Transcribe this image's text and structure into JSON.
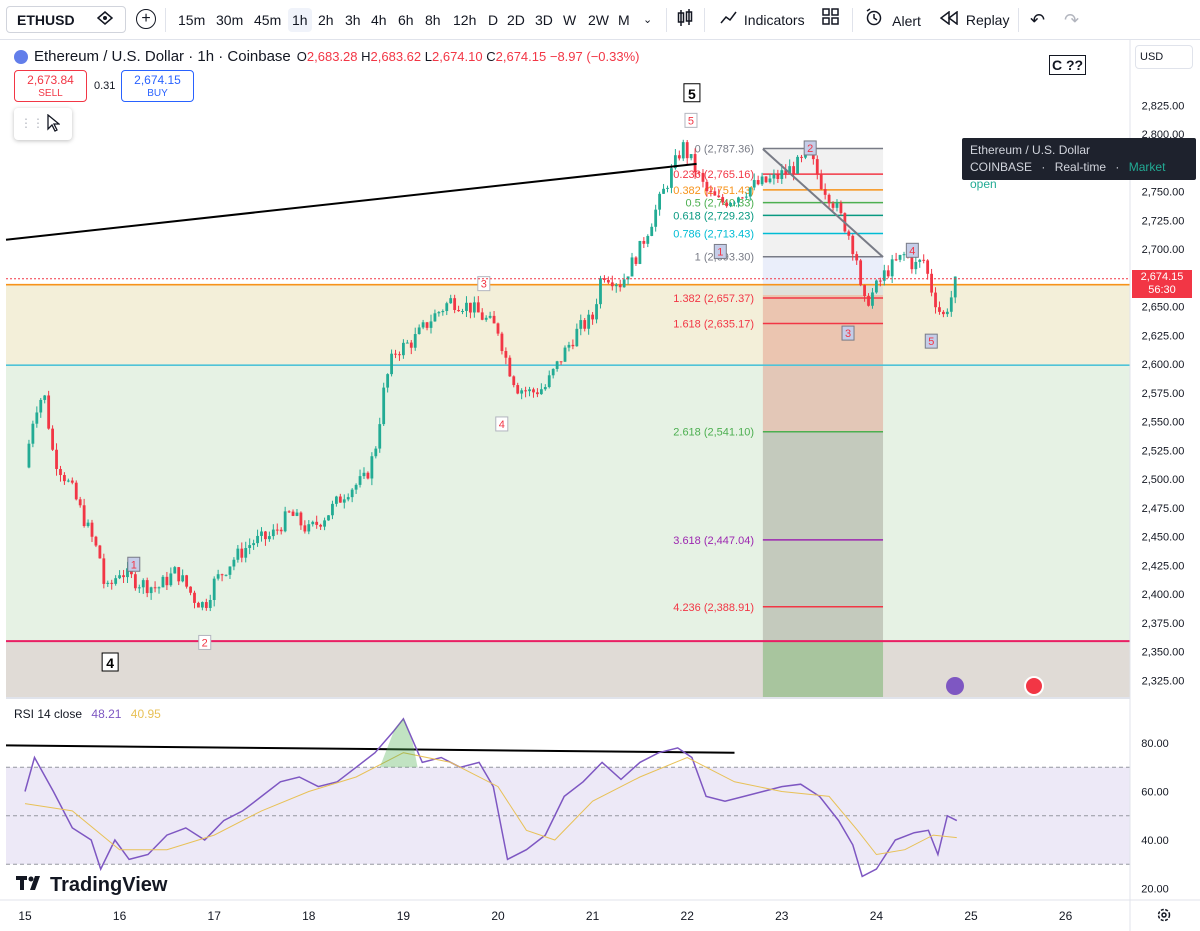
{
  "toolbar": {
    "symbol": "ETHUSD",
    "timeframes": [
      "15m",
      "30m",
      "45m",
      "1h",
      "2h",
      "3h",
      "4h",
      "6h",
      "8h",
      "12h",
      "D",
      "2D",
      "3D",
      "W",
      "2W",
      "M"
    ],
    "active_timeframe": "1h",
    "indicators_label": "Indicators",
    "alert_label": "Alert",
    "replay_label": "Replay"
  },
  "legend": {
    "title": "Ethereum / U.S. Dollar · 1h · Coinbase",
    "o_label": "O",
    "o_value": "2,683.28",
    "h_label": "H",
    "h_value": "2,683.62",
    "l_label": "L",
    "l_value": "2,674.10",
    "c_label": "C",
    "c_value": "2,674.15",
    "change": "−8.97 (−0.33%)"
  },
  "trade": {
    "sell_price": "2,673.84",
    "sell_label": "SELL",
    "spread": "0.31",
    "buy_price": "2,674.15",
    "buy_label": "BUY"
  },
  "tooltip": {
    "title": "Ethereum / U.S. Dollar",
    "exchange": "COINBASE",
    "sep": "·",
    "realtime": "Real-time",
    "status": "Market open"
  },
  "c_label": "C ??",
  "currency": "USD",
  "current_price": {
    "price": "2,674.15",
    "countdown": "56:30"
  },
  "rsi": {
    "label": "RSI 14 close",
    "value": "48.21",
    "ma_value": "40.95"
  },
  "brand": "TradingView",
  "colors": {
    "up": "#22ab94",
    "down": "#f23645",
    "rsi": "#7e57c2",
    "rsi_ma": "#e8c157"
  },
  "chart_data": [
    {
      "type": "candlestick",
      "title": "Ethereum / U.S. Dollar · 1h · Coinbase",
      "x_ticks": [
        "15",
        "16",
        "17",
        "18",
        "19",
        "20",
        "21",
        "22",
        "23",
        "24",
        "25",
        "26"
      ],
      "y_ticks": [
        "2,825.00",
        "2,800.00",
        "2,775.00",
        "2,750.00",
        "2,725.00",
        "2,700.00",
        "2,675.00",
        "2,650.00",
        "2,625.00",
        "2,600.00",
        "2,575.00",
        "2,550.00",
        "2,525.00",
        "2,500.00",
        "2,475.00",
        "2,450.00",
        "2,425.00",
        "2,400.00",
        "2,375.00",
        "2,350.00",
        "2,325.00"
      ],
      "ylim": [
        2313,
        2844
      ],
      "price_path": [
        [
          15.0,
          2510
        ],
        [
          15.1,
          2560
        ],
        [
          15.2,
          2575
        ],
        [
          15.3,
          2520
        ],
        [
          15.5,
          2490
        ],
        [
          15.6,
          2470
        ],
        [
          15.8,
          2430
        ],
        [
          15.85,
          2400
        ],
        [
          16.0,
          2420
        ],
        [
          16.2,
          2410
        ],
        [
          16.4,
          2405
        ],
        [
          16.6,
          2420
        ],
        [
          16.8,
          2395
        ],
        [
          16.9,
          2390
        ],
        [
          17.0,
          2410
        ],
        [
          17.2,
          2430
        ],
        [
          17.4,
          2445
        ],
        [
          17.6,
          2450
        ],
        [
          17.8,
          2470
        ],
        [
          18.0,
          2455
        ],
        [
          18.2,
          2470
        ],
        [
          18.4,
          2490
        ],
        [
          18.6,
          2500
        ],
        [
          18.7,
          2525
        ],
        [
          18.8,
          2580
        ],
        [
          18.9,
          2610
        ],
        [
          19.1,
          2620
        ],
        [
          19.3,
          2640
        ],
        [
          19.5,
          2655
        ],
        [
          19.7,
          2650
        ],
        [
          19.85,
          2640
        ],
        [
          20.0,
          2630
        ],
        [
          20.1,
          2600
        ],
        [
          20.2,
          2580
        ],
        [
          20.35,
          2575
        ],
        [
          20.5,
          2580
        ],
        [
          20.7,
          2610
        ],
        [
          20.85,
          2630
        ],
        [
          21.0,
          2640
        ],
        [
          21.1,
          2680
        ],
        [
          21.3,
          2670
        ],
        [
          21.5,
          2700
        ],
        [
          21.7,
          2740
        ],
        [
          21.85,
          2770
        ],
        [
          21.95,
          2790
        ],
        [
          22.05,
          2775
        ],
        [
          22.2,
          2750
        ],
        [
          22.35,
          2740
        ],
        [
          22.5,
          2745
        ],
        [
          22.7,
          2755
        ],
        [
          22.9,
          2760
        ],
        [
          23.1,
          2770
        ],
        [
          23.3,
          2780
        ],
        [
          23.4,
          2760
        ],
        [
          23.55,
          2740
        ],
        [
          23.7,
          2715
        ],
        [
          23.8,
          2690
        ],
        [
          23.85,
          2650
        ],
        [
          23.95,
          2660
        ],
        [
          24.1,
          2680
        ],
        [
          24.3,
          2695
        ],
        [
          24.4,
          2685
        ],
        [
          24.5,
          2690
        ],
        [
          24.6,
          2660
        ],
        [
          24.7,
          2640
        ],
        [
          24.8,
          2660
        ],
        [
          24.85,
          2675
        ]
      ],
      "horizontal_levels": [
        2669,
        2599,
        2359
      ],
      "fib_levels": [
        {
          "ratio": "0",
          "price": "2,787.36"
        },
        {
          "ratio": "0.236",
          "price": "2,765.16"
        },
        {
          "ratio": "0.382",
          "price": "2,751.43"
        },
        {
          "ratio": "0.5",
          "price": "2,740.33"
        },
        {
          "ratio": "0.618",
          "price": "2,729.23"
        },
        {
          "ratio": "0.786",
          "price": "2,713.43"
        },
        {
          "ratio": "1",
          "price": "2,693.30"
        },
        {
          "ratio": "1.382",
          "price": "2,657.37"
        },
        {
          "ratio": "1.618",
          "price": "2,635.17"
        },
        {
          "ratio": "2.618",
          "price": "2,541.10"
        },
        {
          "ratio": "3.618",
          "price": "2,447.04"
        },
        {
          "ratio": "4.236",
          "price": "2,388.91"
        }
      ],
      "wave_labels": [
        {
          "text": "4",
          "x": 15.9,
          "price": 2340
        },
        {
          "text": "1",
          "x": 16.15,
          "price": 2425
        },
        {
          "text": "2",
          "x": 16.9,
          "price": 2357
        },
        {
          "text": "3",
          "x": 19.85,
          "price": 2669
        },
        {
          "text": "4",
          "x": 20.04,
          "price": 2547
        },
        {
          "text": "5",
          "x": 22.04,
          "price": 2811
        },
        {
          "text": "5",
          "x": 22.05,
          "price": 2835
        },
        {
          "text": "1",
          "x": 22.35,
          "price": 2697
        },
        {
          "text": "2",
          "x": 23.3,
          "price": 2787
        },
        {
          "text": "3",
          "x": 23.7,
          "price": 2626
        },
        {
          "text": "4",
          "x": 24.38,
          "price": 2698
        },
        {
          "text": "5",
          "x": 24.58,
          "price": 2619
        }
      ]
    },
    {
      "type": "line",
      "title": "RSI 14 close",
      "y_ticks": [
        "80.00",
        "60.00",
        "40.00",
        "20.00"
      ],
      "ylim": [
        15,
        93
      ],
      "bands": [
        70,
        50,
        30
      ],
      "series": [
        {
          "name": "RSI 14 close",
          "values": [
            [
              15.0,
              60
            ],
            [
              15.1,
              74
            ],
            [
              15.3,
              60
            ],
            [
              15.5,
              45
            ],
            [
              15.7,
              40
            ],
            [
              15.8,
              28
            ],
            [
              15.95,
              40
            ],
            [
              16.1,
              32
            ],
            [
              16.3,
              34
            ],
            [
              16.5,
              42
            ],
            [
              16.7,
              45
            ],
            [
              16.9,
              40
            ],
            [
              17.1,
              48
            ],
            [
              17.3,
              52
            ],
            [
              17.5,
              58
            ],
            [
              17.7,
              64
            ],
            [
              17.9,
              66
            ],
            [
              18.1,
              62
            ],
            [
              18.3,
              64
            ],
            [
              18.5,
              70
            ],
            [
              18.7,
              76
            ],
            [
              18.9,
              85
            ],
            [
              19.0,
              90
            ],
            [
              19.2,
              72
            ],
            [
              19.4,
              74
            ],
            [
              19.6,
              70
            ],
            [
              19.8,
              72
            ],
            [
              19.95,
              62
            ],
            [
              20.1,
              32
            ],
            [
              20.3,
              36
            ],
            [
              20.5,
              42
            ],
            [
              20.7,
              58
            ],
            [
              20.9,
              64
            ],
            [
              21.1,
              72
            ],
            [
              21.3,
              65
            ],
            [
              21.5,
              72
            ],
            [
              21.7,
              76
            ],
            [
              21.9,
              78
            ],
            [
              22.05,
              74
            ],
            [
              22.2,
              58
            ],
            [
              22.4,
              56
            ],
            [
              22.6,
              58
            ],
            [
              22.8,
              60
            ],
            [
              23.0,
              62
            ],
            [
              23.2,
              63
            ],
            [
              23.4,
              58
            ],
            [
              23.6,
              48
            ],
            [
              23.75,
              38
            ],
            [
              23.85,
              25
            ],
            [
              24.0,
              28
            ],
            [
              24.2,
              40
            ],
            [
              24.4,
              43
            ],
            [
              24.55,
              44
            ],
            [
              24.65,
              34
            ],
            [
              24.75,
              50
            ],
            [
              24.85,
              48
            ]
          ]
        },
        {
          "name": "RSI MA",
          "values": [
            [
              15.0,
              55
            ],
            [
              15.5,
              52
            ],
            [
              16.0,
              36
            ],
            [
              16.5,
              36
            ],
            [
              17.0,
              42
            ],
            [
              17.5,
              52
            ],
            [
              18.0,
              60
            ],
            [
              18.5,
              66
            ],
            [
              19.0,
              76
            ],
            [
              19.5,
              72
            ],
            [
              20.0,
              62
            ],
            [
              20.3,
              44
            ],
            [
              20.6,
              40
            ],
            [
              21.0,
              56
            ],
            [
              21.5,
              66
            ],
            [
              22.0,
              74
            ],
            [
              22.5,
              64
            ],
            [
              23.0,
              60
            ],
            [
              23.5,
              58
            ],
            [
              23.8,
              44
            ],
            [
              24.0,
              34
            ],
            [
              24.3,
              36
            ],
            [
              24.6,
              42
            ],
            [
              24.85,
              41
            ]
          ]
        }
      ]
    }
  ]
}
